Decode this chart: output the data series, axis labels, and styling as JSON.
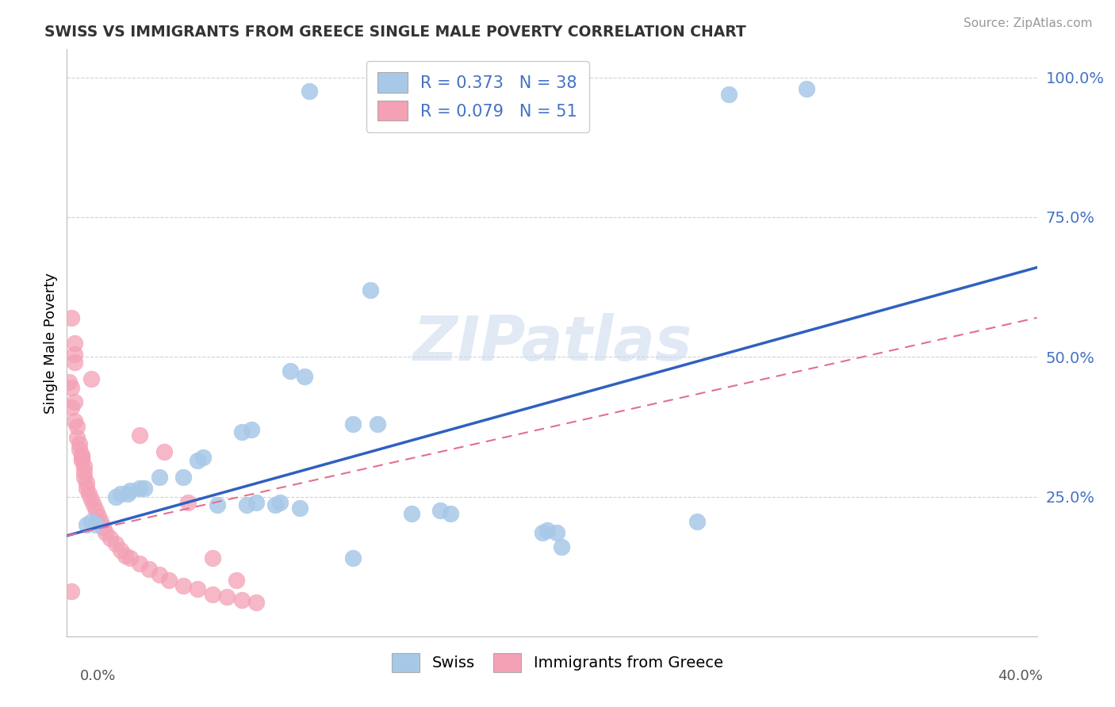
{
  "title": "SWISS VS IMMIGRANTS FROM GREECE SINGLE MALE POVERTY CORRELATION CHART",
  "source": "Source: ZipAtlas.com",
  "ylabel": "Single Male Poverty",
  "xlim": [
    0.0,
    0.4
  ],
  "ylim": [
    0.0,
    1.05
  ],
  "ytick_vals": [
    0.25,
    0.5,
    0.75,
    1.0
  ],
  "ytick_labels": [
    "25.0%",
    "50.0%",
    "75.0%",
    "100.0%"
  ],
  "legend_swiss": "R = 0.373   N = 38",
  "legend_greece": "R = 0.079   N = 51",
  "swiss_color": "#a8c8e8",
  "greece_color": "#f4a0b5",
  "swiss_line_color": "#3060c0",
  "greece_line_color": "#e07090",
  "watermark": "ZIPatlas",
  "bg_color": "#ffffff",
  "grid_color": "#d0d0e0",
  "tick_label_color": "#4472c4",
  "swiss_dots": [
    [
      0.1,
      0.975
    ],
    [
      0.125,
      0.62
    ],
    [
      0.273,
      0.97
    ],
    [
      0.305,
      0.98
    ],
    [
      0.092,
      0.475
    ],
    [
      0.098,
      0.465
    ],
    [
      0.118,
      0.38
    ],
    [
      0.128,
      0.38
    ],
    [
      0.072,
      0.365
    ],
    [
      0.076,
      0.37
    ],
    [
      0.054,
      0.315
    ],
    [
      0.056,
      0.32
    ],
    [
      0.048,
      0.285
    ],
    [
      0.038,
      0.285
    ],
    [
      0.032,
      0.265
    ],
    [
      0.03,
      0.265
    ],
    [
      0.026,
      0.26
    ],
    [
      0.025,
      0.255
    ],
    [
      0.022,
      0.255
    ],
    [
      0.02,
      0.25
    ],
    [
      0.074,
      0.235
    ],
    [
      0.078,
      0.24
    ],
    [
      0.086,
      0.235
    ],
    [
      0.088,
      0.24
    ],
    [
      0.062,
      0.235
    ],
    [
      0.096,
      0.23
    ],
    [
      0.142,
      0.22
    ],
    [
      0.154,
      0.225
    ],
    [
      0.158,
      0.22
    ],
    [
      0.196,
      0.185
    ],
    [
      0.198,
      0.19
    ],
    [
      0.202,
      0.185
    ],
    [
      0.204,
      0.16
    ],
    [
      0.118,
      0.14
    ],
    [
      0.26,
      0.205
    ],
    [
      0.008,
      0.2
    ],
    [
      0.01,
      0.205
    ],
    [
      0.012,
      0.2
    ]
  ],
  "greece_dots": [
    [
      0.002,
      0.57
    ],
    [
      0.003,
      0.525
    ],
    [
      0.003,
      0.505
    ],
    [
      0.003,
      0.49
    ],
    [
      0.001,
      0.455
    ],
    [
      0.002,
      0.445
    ],
    [
      0.003,
      0.42
    ],
    [
      0.002,
      0.41
    ],
    [
      0.003,
      0.385
    ],
    [
      0.004,
      0.375
    ],
    [
      0.004,
      0.355
    ],
    [
      0.005,
      0.345
    ],
    [
      0.005,
      0.335
    ],
    [
      0.006,
      0.325
    ],
    [
      0.006,
      0.32
    ],
    [
      0.006,
      0.315
    ],
    [
      0.007,
      0.305
    ],
    [
      0.007,
      0.295
    ],
    [
      0.007,
      0.285
    ],
    [
      0.008,
      0.275
    ],
    [
      0.008,
      0.265
    ],
    [
      0.009,
      0.255
    ],
    [
      0.01,
      0.245
    ],
    [
      0.011,
      0.235
    ],
    [
      0.012,
      0.225
    ],
    [
      0.013,
      0.215
    ],
    [
      0.014,
      0.205
    ],
    [
      0.015,
      0.195
    ],
    [
      0.016,
      0.185
    ],
    [
      0.018,
      0.175
    ],
    [
      0.02,
      0.165
    ],
    [
      0.022,
      0.155
    ],
    [
      0.024,
      0.145
    ],
    [
      0.026,
      0.14
    ],
    [
      0.03,
      0.13
    ],
    [
      0.034,
      0.12
    ],
    [
      0.038,
      0.11
    ],
    [
      0.042,
      0.1
    ],
    [
      0.048,
      0.09
    ],
    [
      0.054,
      0.085
    ],
    [
      0.06,
      0.075
    ],
    [
      0.066,
      0.07
    ],
    [
      0.072,
      0.065
    ],
    [
      0.078,
      0.06
    ],
    [
      0.01,
      0.46
    ],
    [
      0.03,
      0.36
    ],
    [
      0.04,
      0.33
    ],
    [
      0.05,
      0.24
    ],
    [
      0.06,
      0.14
    ],
    [
      0.07,
      0.1
    ],
    [
      0.002,
      0.08
    ]
  ],
  "swiss_trend_x": [
    0.0,
    0.4
  ],
  "swiss_trend_y": [
    0.18,
    0.66
  ],
  "greece_trend_x": [
    0.0,
    0.4
  ],
  "greece_trend_y": [
    0.18,
    0.57
  ]
}
